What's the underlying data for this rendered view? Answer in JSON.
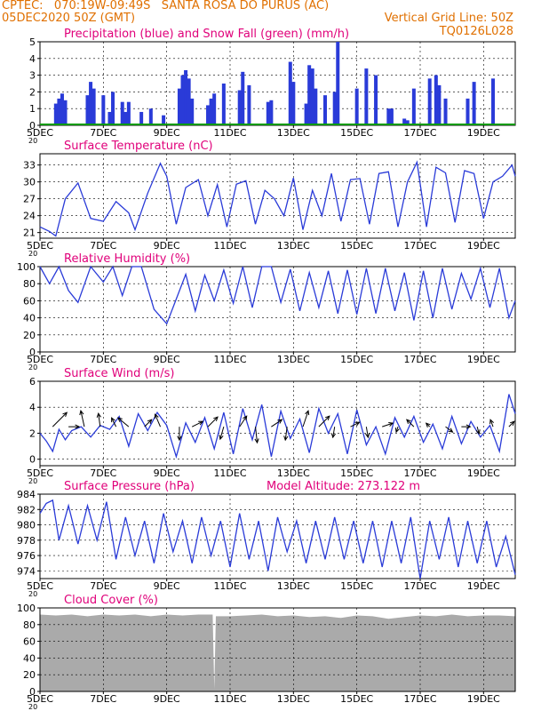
{
  "header": {
    "line1_left": "CPTEC:   070:19W-09:49S   SANTA ROSA DO PURUS (AC)",
    "line2_left": "05DEC2020 50Z (GMT)",
    "line2_right": "Vertical Grid Line: 50Z",
    "line3_right": "TQ0126L028"
  },
  "colors": {
    "header_text": "#e07000",
    "title_text": "#e0007a",
    "series_line": "#2a3bd8",
    "snow": "#0a9a0a",
    "cloud": "#aaaaaa"
  },
  "x_axis": {
    "start_day": 5,
    "end_day": 20,
    "tick_days": [
      5,
      7,
      9,
      11,
      13,
      15,
      17,
      19
    ],
    "tick_labels": [
      "5DEC",
      "7DEC",
      "9DEC",
      "11DEC",
      "13DEC",
      "15DEC",
      "17DEC",
      "19DEC"
    ],
    "year_fragment": "20"
  },
  "chart_data": [
    {
      "id": "precip",
      "type": "bar",
      "title": "Precipitation (blue) and Snow Fall (green) (mm/h)",
      "ylim": [
        0,
        5
      ],
      "yticks": [
        0,
        1,
        2,
        3,
        4,
        5
      ],
      "grid": true,
      "series": [
        {
          "name": "Precipitation",
          "x": [
            5.5,
            5.6,
            5.7,
            5.8,
            6.5,
            6.6,
            6.7,
            7.0,
            7.2,
            7.3,
            7.6,
            7.7,
            7.8,
            8.2,
            8.5,
            8.9,
            9.4,
            9.5,
            9.6,
            9.7,
            9.8,
            10.3,
            10.4,
            10.5,
            10.8,
            11.3,
            11.4,
            11.6,
            12.2,
            12.3,
            12.9,
            13.0,
            13.4,
            13.5,
            13.6,
            13.7,
            14.0,
            14.3,
            14.4,
            15.0,
            15.3,
            15.6,
            16.0,
            16.1,
            16.5,
            16.6,
            16.8,
            17.3,
            17.5,
            17.6,
            17.8,
            18.5,
            18.7,
            19.3
          ],
          "values": [
            1.3,
            1.6,
            1.9,
            1.5,
            1.8,
            2.6,
            2.2,
            1.8,
            0.8,
            2.0,
            1.4,
            0.8,
            1.4,
            0.8,
            1.0,
            0.6,
            2.2,
            3.0,
            3.3,
            2.8,
            1.6,
            1.2,
            1.6,
            1.9,
            2.5,
            2.1,
            3.2,
            2.4,
            1.4,
            1.5,
            3.8,
            2.6,
            1.3,
            3.6,
            3.4,
            2.2,
            1.8,
            2.0,
            5.0,
            2.2,
            3.4,
            3.0,
            1.0,
            1.0,
            0.4,
            0.3,
            2.2,
            2.8,
            3.0,
            2.4,
            1.6,
            1.6,
            2.6,
            2.8
          ]
        },
        {
          "name": "Snow Fall",
          "x": [
            5.0,
            20.0
          ],
          "values": [
            0,
            0
          ]
        }
      ]
    },
    {
      "id": "temperature",
      "type": "line",
      "title": "Surface Temperature (nC)",
      "ylim": [
        20,
        35
      ],
      "yticks": [
        21,
        24,
        27,
        30,
        33
      ],
      "grid": true,
      "series": [
        {
          "name": "Temperature",
          "x": [
            5.0,
            5.3,
            5.5,
            5.8,
            6.2,
            6.6,
            7.0,
            7.4,
            7.8,
            8.0,
            8.4,
            8.8,
            9.0,
            9.3,
            9.6,
            10.0,
            10.3,
            10.6,
            10.9,
            11.2,
            11.5,
            11.8,
            12.1,
            12.4,
            12.7,
            13.0,
            13.3,
            13.6,
            13.9,
            14.2,
            14.5,
            14.8,
            15.1,
            15.4,
            15.7,
            16.0,
            16.3,
            16.6,
            16.9,
            17.2,
            17.5,
            17.8,
            18.1,
            18.4,
            18.7,
            19.0,
            19.3,
            19.6,
            19.9,
            20.0
          ],
          "values": [
            22.0,
            21.2,
            20.4,
            27.0,
            29.8,
            23.5,
            23.0,
            26.5,
            24.5,
            21.5,
            28.0,
            33.3,
            31.0,
            22.5,
            29.0,
            30.4,
            24.0,
            29.5,
            22.0,
            29.6,
            30.2,
            22.5,
            28.5,
            27.0,
            24.0,
            30.7,
            21.5,
            28.5,
            24.0,
            31.5,
            23.0,
            30.4,
            30.6,
            22.5,
            31.5,
            31.8,
            22.0,
            30.0,
            33.5,
            22.0,
            32.6,
            31.6,
            22.8,
            32.0,
            31.5,
            23.5,
            30.0,
            31.0,
            33.0,
            31.0
          ]
        }
      ]
    },
    {
      "id": "humidity",
      "type": "line",
      "title": "Relative Humidity (%)",
      "ylim": [
        0,
        100
      ],
      "yticks": [
        0,
        20,
        40,
        60,
        80,
        100
      ],
      "grid": true,
      "series": [
        {
          "name": "Relative Humidity",
          "x": [
            5.0,
            5.3,
            5.6,
            5.9,
            6.2,
            6.6,
            7.0,
            7.3,
            7.6,
            7.9,
            8.2,
            8.6,
            9.0,
            9.3,
            9.6,
            9.9,
            10.2,
            10.5,
            10.8,
            11.1,
            11.4,
            11.7,
            12.0,
            12.3,
            12.6,
            12.9,
            13.2,
            13.5,
            13.8,
            14.1,
            14.4,
            14.7,
            15.0,
            15.3,
            15.6,
            15.9,
            16.2,
            16.5,
            16.8,
            17.1,
            17.4,
            17.7,
            18.0,
            18.3,
            18.6,
            18.9,
            19.2,
            19.5,
            19.8,
            20.0
          ],
          "values": [
            100,
            80,
            100,
            72,
            58,
            100,
            82,
            100,
            66,
            100,
            100,
            50,
            33,
            62,
            91,
            48,
            90,
            60,
            96,
            57,
            100,
            52,
            100,
            100,
            58,
            97,
            48,
            93,
            52,
            95,
            45,
            96,
            44,
            98,
            45,
            98,
            48,
            93,
            37,
            95,
            40,
            98,
            50,
            92,
            62,
            98,
            52,
            98,
            40,
            60
          ]
        }
      ]
    },
    {
      "id": "wind",
      "type": "line",
      "title": "Surface Wind (m/s)",
      "ylim": [
        -0.5,
        6
      ],
      "yticks": [
        0,
        2,
        4,
        6
      ],
      "grid": true,
      "series": [
        {
          "name": "Wind Speed",
          "x": [
            5.0,
            5.2,
            5.4,
            5.6,
            5.8,
            6.0,
            6.3,
            6.6,
            6.9,
            7.2,
            7.5,
            7.8,
            8.1,
            8.4,
            8.7,
            9.0,
            9.3,
            9.6,
            9.9,
            10.2,
            10.5,
            10.8,
            11.1,
            11.4,
            11.7,
            12.0,
            12.3,
            12.6,
            12.9,
            13.2,
            13.5,
            13.8,
            14.1,
            14.4,
            14.7,
            15.0,
            15.3,
            15.6,
            15.9,
            16.2,
            16.5,
            16.8,
            17.1,
            17.4,
            17.7,
            18.0,
            18.3,
            18.6,
            18.9,
            19.2,
            19.5,
            19.8,
            20.0
          ],
          "values": [
            2.0,
            1.4,
            0.6,
            2.3,
            1.5,
            2.2,
            2.5,
            1.7,
            2.6,
            2.3,
            3.3,
            1.0,
            3.5,
            2.2,
            3.6,
            2.6,
            0.2,
            2.8,
            1.3,
            3.2,
            0.8,
            3.6,
            0.4,
            3.9,
            1.5,
            4.2,
            0.2,
            3.7,
            1.6,
            3.1,
            0.5,
            3.9,
            2.0,
            3.5,
            0.4,
            3.8,
            1.1,
            2.5,
            0.4,
            3.2,
            1.7,
            3.3,
            1.3,
            2.7,
            0.8,
            3.3,
            1.2,
            2.9,
            1.7,
            2.6,
            0.6,
            5.0,
            3.5
          ]
        }
      ],
      "vectors": [
        {
          "x": 5.4,
          "u": 1.6,
          "v": 1.6
        },
        {
          "x": 5.9,
          "u": 1.2,
          "v": 0.0
        },
        {
          "x": 6.4,
          "u": -0.4,
          "v": 1.8
        },
        {
          "x": 6.9,
          "u": -0.2,
          "v": 1.5
        },
        {
          "x": 7.4,
          "u": -0.5,
          "v": 1.0
        },
        {
          "x": 7.8,
          "u": -1.2,
          "v": 1.0
        },
        {
          "x": 8.3,
          "u": 0.8,
          "v": 0.8
        },
        {
          "x": 8.8,
          "u": -0.6,
          "v": 1.4
        },
        {
          "x": 9.4,
          "u": 0.0,
          "v": -1.5
        },
        {
          "x": 9.8,
          "u": 1.2,
          "v": 0.6
        },
        {
          "x": 10.3,
          "u": 1.1,
          "v": 1.1
        },
        {
          "x": 10.8,
          "u": -0.4,
          "v": -1.4
        },
        {
          "x": 11.3,
          "u": 0.8,
          "v": 1.2
        },
        {
          "x": 11.8,
          "u": 0.2,
          "v": -1.8
        },
        {
          "x": 12.3,
          "u": 1.2,
          "v": 0.8
        },
        {
          "x": 12.8,
          "u": -0.2,
          "v": -1.5
        },
        {
          "x": 13.3,
          "u": 0.6,
          "v": 1.8
        },
        {
          "x": 13.8,
          "u": 1.2,
          "v": 1.2
        },
        {
          "x": 14.3,
          "u": -0.2,
          "v": -1.2
        },
        {
          "x": 14.8,
          "u": 1.0,
          "v": 0.5
        },
        {
          "x": 15.3,
          "u": 0.2,
          "v": -1.2
        },
        {
          "x": 15.8,
          "u": 1.2,
          "v": 0.4
        },
        {
          "x": 16.3,
          "u": -0.2,
          "v": -0.6
        },
        {
          "x": 16.8,
          "u": -0.8,
          "v": 0.8
        },
        {
          "x": 17.3,
          "u": -0.4,
          "v": 0.4
        },
        {
          "x": 17.8,
          "u": 0.8,
          "v": -0.6
        },
        {
          "x": 18.3,
          "u": 1.0,
          "v": 0.0
        },
        {
          "x": 18.8,
          "u": 0.2,
          "v": -0.8
        },
        {
          "x": 19.3,
          "u": -0.3,
          "v": 0.8
        },
        {
          "x": 19.8,
          "u": 0.6,
          "v": 0.6
        }
      ]
    },
    {
      "id": "pressure",
      "type": "line",
      "title": "Surface Pressure (hPa)",
      "subtitle": "Model Altitude: 273.122 m",
      "ylim": [
        973,
        984
      ],
      "yticks": [
        974,
        976,
        978,
        980,
        982,
        984
      ],
      "grid": true,
      "series": [
        {
          "name": "Surface Pressure",
          "x": [
            5.0,
            5.2,
            5.4,
            5.6,
            5.9,
            6.2,
            6.5,
            6.8,
            7.1,
            7.4,
            7.7,
            8.0,
            8.3,
            8.6,
            8.9,
            9.2,
            9.5,
            9.8,
            10.1,
            10.4,
            10.7,
            11.0,
            11.3,
            11.6,
            11.9,
            12.2,
            12.5,
            12.8,
            13.1,
            13.4,
            13.7,
            14.0,
            14.3,
            14.6,
            14.9,
            15.2,
            15.5,
            15.8,
            16.1,
            16.4,
            16.7,
            17.0,
            17.3,
            17.6,
            17.9,
            18.2,
            18.5,
            18.8,
            19.1,
            19.4,
            19.7,
            20.0
          ],
          "values": [
            981.5,
            982.8,
            983.2,
            978.0,
            982.5,
            977.5,
            982.5,
            978.0,
            983.0,
            975.5,
            981.0,
            976.0,
            980.5,
            975.0,
            981.5,
            976.5,
            980.5,
            975.0,
            981.0,
            976.0,
            980.5,
            974.5,
            981.5,
            975.5,
            980.5,
            974.0,
            981.0,
            976.5,
            980.5,
            975.0,
            980.5,
            975.5,
            981.0,
            975.5,
            980.5,
            975.0,
            980.5,
            974.5,
            980.5,
            975.0,
            981.0,
            973.0,
            980.5,
            975.5,
            981.0,
            974.5,
            980.5,
            975.0,
            980.5,
            974.5,
            978.5,
            973.5
          ]
        }
      ]
    },
    {
      "id": "cloud",
      "type": "area",
      "title": "Cloud Cover (%)",
      "ylim": [
        0,
        100
      ],
      "yticks": [
        0,
        20,
        40,
        60,
        80,
        100
      ],
      "grid": true,
      "series": [
        {
          "name": "Cloud Cover",
          "x": [
            5.0,
            5.5,
            6.0,
            6.5,
            7.0,
            7.5,
            8.0,
            8.5,
            9.0,
            9.5,
            10.0,
            10.45,
            10.5,
            10.55,
            11.0,
            11.5,
            12.0,
            12.5,
            13.0,
            13.5,
            14.0,
            14.5,
            15.0,
            15.5,
            16.0,
            16.5,
            17.0,
            17.5,
            18.0,
            18.5,
            19.0,
            19.5,
            20.0
          ],
          "values": [
            92,
            91,
            92,
            90,
            92,
            91,
            92,
            90,
            92,
            91,
            92,
            92,
            3,
            90,
            90,
            91,
            92,
            90,
            91,
            89,
            90,
            88,
            91,
            90,
            87,
            89,
            91,
            90,
            92,
            90,
            91,
            91,
            90
          ]
        }
      ]
    }
  ]
}
